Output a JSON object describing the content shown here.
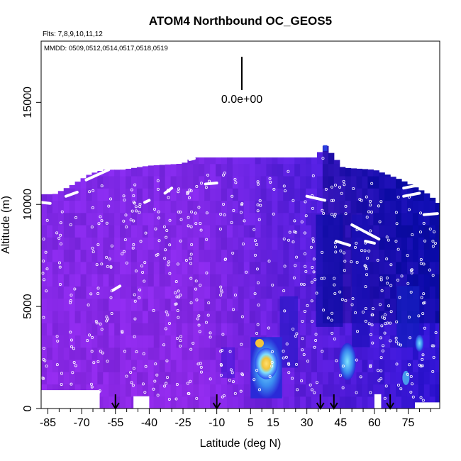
{
  "chart_data": {
    "type": "heatmap",
    "title": "ATOM4 Northbound OC_GEOS5",
    "subtitle_flights": "Flts: 7,8,9,10,11,12",
    "subtitle_dates": "MMDD: 0509,0512,0514,0517,0518,0519",
    "xlabel": "Latitude (deg N)",
    "ylabel": "Altitude (m)",
    "xlim": [
      -88,
      89
    ],
    "ylim": [
      0,
      18000
    ],
    "x_ticks": [
      -85,
      -70,
      -55,
      -40,
      -25,
      -10,
      5,
      15,
      30,
      45,
      60,
      75
    ],
    "x_minor_ticks": [
      -80,
      -75,
      -65,
      -60,
      -50,
      -45,
      -35,
      -30,
      -20,
      -15,
      -5,
      0,
      10,
      20,
      25,
      35,
      40,
      50,
      55,
      65,
      70,
      80,
      85
    ],
    "y_ticks": [
      0,
      5000,
      10000,
      15000
    ],
    "legend_scale_label": "0.0e+00",
    "arrow_latitudes": [
      -55,
      -10,
      36,
      42,
      67
    ],
    "colormap_note": "purple = low, blue = moderate, cyan/yellow = high",
    "colors": {
      "low": "#8a2be2",
      "mid": "#3a1fd0",
      "deep": "#0a0a9a",
      "high_cyan": "#5fd0ff",
      "peak_yellow": "#f2c43a",
      "track_points": "#ffffff"
    }
  }
}
